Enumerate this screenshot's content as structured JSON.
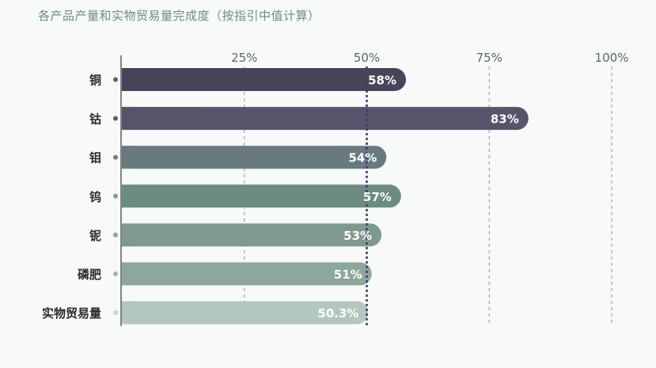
{
  "title": "各产品产量和实物贸易量完成度（按指引中值计算）",
  "chart_data": {
    "type": "bar",
    "orientation": "horizontal",
    "title": "各产品产量和实物贸易量完成度（按指引中值计算）",
    "xlabel": "",
    "ylabel": "",
    "xlim": [
      0,
      100
    ],
    "ticks": [
      {
        "value": 25,
        "label": "25%"
      },
      {
        "value": 50,
        "label": "50%"
      },
      {
        "value": 75,
        "label": "75%"
      },
      {
        "value": 100,
        "label": "100%"
      }
    ],
    "reference_line": 50,
    "grid": true,
    "categories": [
      "铜",
      "钴",
      "钼",
      "钨",
      "铌",
      "磷肥",
      "实物贸易量"
    ],
    "values": [
      58,
      83,
      54,
      57,
      53,
      51,
      50.3
    ],
    "value_labels": [
      "58%",
      "83%",
      "54%",
      "57%",
      "53%",
      "51%",
      "50.3%"
    ],
    "colors": [
      "#464559",
      "#56546b",
      "#697a7e",
      "#6c8b81",
      "#7e9a8e",
      "#8da79d",
      "#b2c7bf"
    ],
    "bullet_colors": [
      "#5c5c6c",
      "#5c5c6c",
      "#6a7e7f",
      "#7f9a90",
      "#8da39b",
      "#9fb4ac",
      "#c6d3ce"
    ]
  }
}
